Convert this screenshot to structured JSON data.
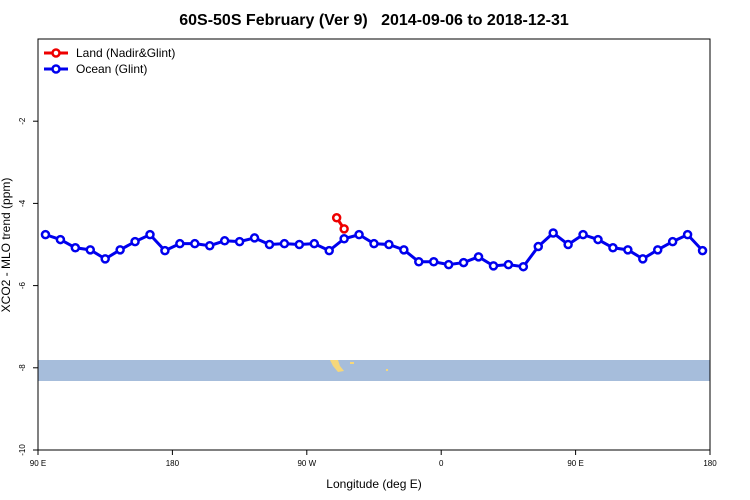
{
  "chart_data": {
    "type": "line",
    "title": "60S-50S February (Ver 9)   2014-09-06 to 2018-12-31",
    "x_label": "Longitude (deg E)",
    "y_label": "XCO2 - MLO trend (ppm)",
    "xlim": [
      90,
      540
    ],
    "xticks": [
      {
        "value": 90,
        "label": "90 E"
      },
      180,
      {
        "value": 270,
        "label": "90 W"
      },
      {
        "value": 360,
        "label": "0"
      },
      {
        "value": 450,
        "label": "90 E"
      },
      {
        "value": 540,
        "label": "180"
      }
    ],
    "ylim": [
      -10,
      0
    ],
    "yticks": [
      -10,
      -8,
      -6,
      -4,
      -2
    ],
    "legend": "top-left",
    "series": [
      {
        "name": "Land (Nadir&Glint)",
        "color": "#ee0000",
        "x": [
          290,
          295
        ],
        "values": [
          -4.35,
          -4.62
        ]
      },
      {
        "name": "Ocean (Glint)",
        "color": "#0000ee",
        "x": [
          95,
          105,
          115,
          125,
          135,
          145,
          155,
          165,
          175,
          185,
          195,
          205,
          215,
          225,
          235,
          245,
          255,
          265,
          275,
          285,
          295,
          305,
          315,
          325,
          335,
          345,
          355,
          365,
          375,
          385,
          395,
          405,
          415,
          425,
          435,
          445,
          455,
          465,
          475,
          485,
          495,
          505,
          515,
          525,
          535
        ],
        "values": [
          -4.76,
          -4.88,
          -5.08,
          -5.13,
          -5.35,
          -5.13,
          -4.93,
          -4.76,
          -5.15,
          -4.98,
          -4.98,
          -5.03,
          -4.91,
          -4.93,
          -4.84,
          -5.0,
          -4.98,
          -5.0,
          -4.98,
          -5.15,
          -4.86,
          -4.76,
          -4.98,
          -5.0,
          -5.13,
          -5.42,
          -5.42,
          -5.49,
          -5.44,
          -5.3,
          -5.52,
          -5.49,
          -5.54,
          -5.05,
          -4.72,
          -5.0,
          -4.76,
          -4.88,
          -5.08,
          -5.13,
          -5.35,
          -5.13,
          -4.93,
          -4.76,
          -5.15
        ]
      }
    ]
  }
}
